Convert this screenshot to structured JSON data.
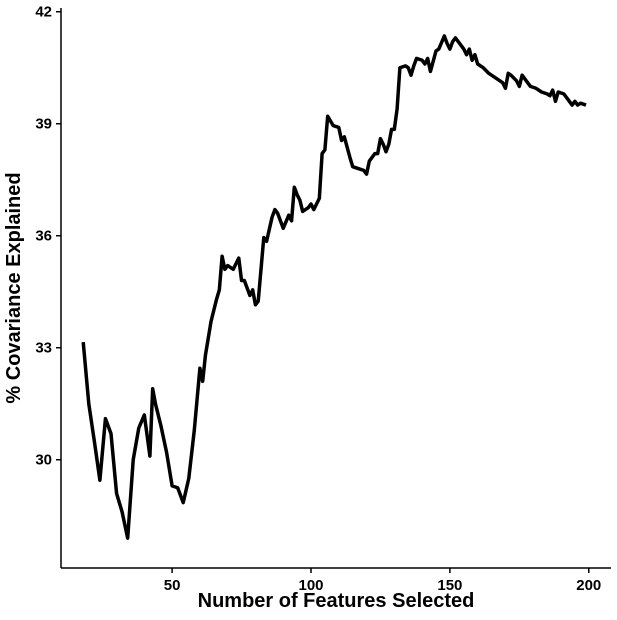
{
  "chart_data": {
    "type": "line",
    "x_label": "Number of Features Selected",
    "y_label": "% Covariance Explained",
    "x": [
      18,
      20,
      22,
      24,
      26,
      28,
      30,
      32,
      34,
      36,
      38,
      40,
      42,
      43,
      44,
      46,
      48,
      50,
      52,
      54,
      56,
      58,
      60,
      61,
      62,
      64,
      66,
      67,
      68,
      69,
      70,
      72,
      74,
      75,
      76,
      78,
      79,
      80,
      81,
      83,
      84,
      86,
      87,
      88,
      90,
      92,
      93,
      94,
      95,
      96,
      97,
      99,
      100,
      101,
      103,
      104,
      105,
      106,
      108,
      110,
      111,
      112,
      114,
      115,
      117,
      119,
      120,
      121,
      123,
      124,
      125,
      126,
      127,
      128,
      129,
      130,
      131,
      132,
      134,
      135,
      136,
      137,
      138,
      140,
      141,
      142,
      143,
      145,
      146,
      148,
      149,
      150,
      151,
      152,
      153,
      155,
      156,
      157,
      158,
      159,
      160,
      162,
      164,
      165,
      167,
      169,
      170,
      171,
      172,
      174,
      175,
      176,
      177,
      179,
      181,
      183,
      185,
      186,
      187,
      188,
      189,
      191,
      192,
      193,
      194,
      195,
      196,
      197,
      199
    ],
    "series": [
      {
        "name": "covariance",
        "color": "#000000",
        "values": [
          33.15,
          31.5,
          30.5,
          29.45,
          31.1,
          30.7,
          29.1,
          28.6,
          27.9,
          30.0,
          30.85,
          31.2,
          30.1,
          31.9,
          31.5,
          30.9,
          30.2,
          29.3,
          29.25,
          28.85,
          29.5,
          30.8,
          32.45,
          32.1,
          32.8,
          33.7,
          34.3,
          34.55,
          35.45,
          35.1,
          35.2,
          35.1,
          35.4,
          34.8,
          34.8,
          34.4,
          34.55,
          34.15,
          34.25,
          35.95,
          35.85,
          36.5,
          36.7,
          36.6,
          36.2,
          36.55,
          36.4,
          37.3,
          37.1,
          36.95,
          36.65,
          36.75,
          36.85,
          36.7,
          37.0,
          38.2,
          38.3,
          39.2,
          38.95,
          38.9,
          38.55,
          38.65,
          38.1,
          37.85,
          37.8,
          37.75,
          37.65,
          38.0,
          38.2,
          38.2,
          38.6,
          38.45,
          38.25,
          38.45,
          38.85,
          38.85,
          39.4,
          40.5,
          40.55,
          40.5,
          40.3,
          40.55,
          40.75,
          40.7,
          40.6,
          40.75,
          40.4,
          40.95,
          41.0,
          41.35,
          41.15,
          41.0,
          41.2,
          41.3,
          41.2,
          41.0,
          40.85,
          41.0,
          40.7,
          40.85,
          40.6,
          40.5,
          40.35,
          40.3,
          40.2,
          40.1,
          39.95,
          40.35,
          40.3,
          40.15,
          40.0,
          40.3,
          40.2,
          40.0,
          39.95,
          39.85,
          39.8,
          39.75,
          39.9,
          39.6,
          39.85,
          39.8,
          39.7,
          39.6,
          39.5,
          39.6,
          39.5,
          39.55,
          39.5
        ]
      }
    ],
    "xlim": [
      10,
      208
    ],
    "xticks": [
      50,
      100,
      150,
      200
    ],
    "ylim": [
      27.1,
      42.1
    ],
    "yticks": [
      30,
      33,
      36,
      39,
      42
    ],
    "grid": false
  }
}
